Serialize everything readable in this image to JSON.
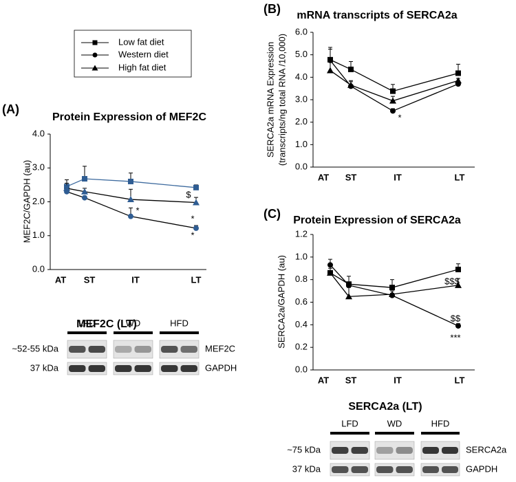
{
  "legend": {
    "entries": [
      "chart_data.0.series.0.name",
      "chart_data.0.series.1.name",
      "chart_data.0.series.2.name"
    ]
  },
  "chart_data": [
    {
      "type": "line",
      "panel": "(A)",
      "title": "Protein Expression of MEF2C",
      "ylabel": [
        "MEF2C/GAPDH (au)"
      ],
      "categories": [
        "AT",
        "ST",
        "IT",
        "LT"
      ],
      "series": [
        {
          "name": "Low fat diet",
          "color": "#3d6a9e",
          "marker": "square",
          "marker_color": "#2f5d93",
          "values": [
            2.45,
            2.68,
            2.6,
            2.42
          ],
          "errors": [
            0.2,
            0.37,
            0.25,
            0.08
          ]
        },
        {
          "name": "Western diet",
          "color": "#000000",
          "marker": "circle",
          "marker_color": "#2f5d93",
          "values": [
            2.3,
            2.12,
            1.57,
            1.22
          ],
          "errors": [
            0.1,
            0.05,
            0.25,
            0.08
          ]
        },
        {
          "name": "High fat diet",
          "color": "#000000",
          "marker": "triangle",
          "marker_color": "#2f5d93",
          "values": [
            2.4,
            2.3,
            2.07,
            1.98
          ],
          "errors": [
            0.15,
            0.1,
            0.3,
            0.15
          ]
        }
      ],
      "ylim": [
        0,
        4
      ],
      "yticks": [
        {
          "value": 0,
          "label": "0.0"
        },
        {
          "value": 1,
          "label": "1.0"
        },
        {
          "value": 2,
          "label": "2.0"
        },
        {
          "value": 3,
          "label": "3.0"
        },
        {
          "value": 4,
          "label": "4.0"
        }
      ],
      "annotations": [
        "*",
        "$",
        "*",
        "*"
      ]
    },
    {
      "type": "line",
      "panel": "(B)",
      "title": "mRNA transcripts of SERCA2a",
      "ylabel": [
        "SERCA2a  mRNA Expression",
        "(transcripts/ng total RNA /10,000)"
      ],
      "categories": [
        "AT",
        "ST",
        "IT",
        "LT"
      ],
      "series": [
        {
          "color": "#000000",
          "marker": "square",
          "marker_color": "#000000",
          "values": [
            4.78,
            4.35,
            3.38,
            4.18
          ],
          "errors": [
            0.55,
            0.35,
            0.3,
            0.4
          ]
        },
        {
          "color": "#000000",
          "marker": "circle",
          "marker_color": "#000000",
          "values": [
            4.75,
            3.6,
            2.5,
            3.7
          ],
          "errors": [
            0.5,
            0.2,
            0.1,
            0.05
          ]
        },
        {
          "color": "#000000",
          "marker": "triangle",
          "marker_color": "#000000",
          "values": [
            4.3,
            3.65,
            2.95,
            3.85
          ],
          "errors": [
            0.4,
            0.2,
            0.2,
            0.1
          ]
        }
      ],
      "ylim": [
        0,
        6
      ],
      "yticks": [
        {
          "value": 0,
          "label": "0.0"
        },
        {
          "value": 1,
          "label": "1.0"
        },
        {
          "value": 2,
          "label": "2.0"
        },
        {
          "value": 3,
          "label": "3.0"
        },
        {
          "value": 4,
          "label": "4.0"
        },
        {
          "value": 5,
          "label": "5.0"
        },
        {
          "value": 6,
          "label": "6.0"
        }
      ],
      "annotations": [
        "*"
      ]
    },
    {
      "type": "line",
      "panel": "(C)",
      "title": "Protein Expression of SERCA2a",
      "ylabel": [
        "SERCA2a/GAPDH (au)"
      ],
      "categories": [
        "AT",
        "ST",
        "IT",
        "LT"
      ],
      "series": [
        {
          "color": "#000000",
          "marker": "square",
          "marker_color": "#000000",
          "values": [
            0.86,
            0.76,
            0.73,
            0.89
          ],
          "errors": [
            0.04,
            0.07,
            0.07,
            0.05
          ]
        },
        {
          "color": "#000000",
          "marker": "circle",
          "marker_color": "#000000",
          "values": [
            0.93,
            0.75,
            0.66,
            0.39
          ],
          "errors": [
            0.05,
            0.03,
            0.02,
            0.02
          ]
        },
        {
          "color": "#000000",
          "marker": "triangle",
          "marker_color": "#000000",
          "values": [
            0.86,
            0.65,
            0.67,
            0.75
          ],
          "errors": [
            0.08,
            0.08,
            0.03,
            0.06
          ]
        }
      ],
      "ylim": [
        0,
        1.2
      ],
      "yticks": [
        {
          "value": 0,
          "label": "0.0"
        },
        {
          "value": 0.2,
          "label": "0.2"
        },
        {
          "value": 0.4,
          "label": "0.4"
        },
        {
          "value": 0.6,
          "label": "0.6"
        },
        {
          "value": 0.8,
          "label": "0.8"
        },
        {
          "value": 1,
          "label": "1.0"
        },
        {
          "value": 1.2,
          "label": "1.2"
        }
      ],
      "annotations": [
        "$$$",
        "$$",
        "***"
      ]
    }
  ],
  "blots": [
    {
      "title": "MEF2C (LT)",
      "groups": [
        "LFD",
        "WD",
        "HFD"
      ],
      "rows": [
        {
          "size": "~52-55 kDa",
          "protein": "MEF2C"
        },
        {
          "size": "37 kDa",
          "protein": "GAPDH"
        }
      ]
    },
    {
      "title": "SERCA2a (LT)",
      "groups": [
        "LFD",
        "WD",
        "HFD"
      ],
      "rows": [
        {
          "size": "~75 kDa",
          "protein": "SERCA2a"
        },
        {
          "size": "37 kDa",
          "protein": "GAPDH"
        }
      ]
    }
  ]
}
